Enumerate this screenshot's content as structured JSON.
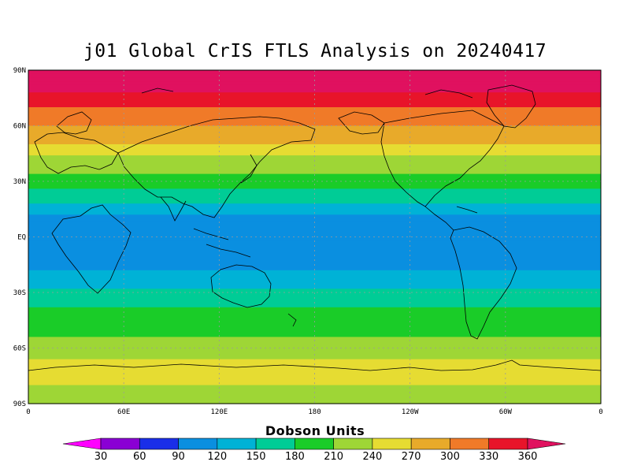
{
  "title": "j01 Global CrIS FTLS Analysis on 20240417",
  "map": {
    "lat_labels": [
      "90N",
      "60N",
      "30N",
      "EQ",
      "30S",
      "60S",
      "90S"
    ],
    "lon_labels": [
      "0",
      "60E",
      "120E",
      "180",
      "120W",
      "60W",
      "0"
    ],
    "grid": true,
    "projection": "equirectangular"
  },
  "colorbar": {
    "title": "Dobson Units",
    "labels": [
      "30",
      "60",
      "90",
      "120",
      "150",
      "180",
      "210",
      "240",
      "270",
      "300",
      "330",
      "360"
    ],
    "colors": [
      "#ff00ff",
      "#8a00d4",
      "#1a2ee8",
      "#0a8fe0",
      "#00b2d6",
      "#00cc96",
      "#1acc28",
      "#9ed636",
      "#e6dc32",
      "#e8aa2a",
      "#f07a28",
      "#e8142a",
      "#e0115f"
    ],
    "extend": "both"
  },
  "field": {
    "units": "Dobson Units",
    "zones": [
      {
        "lat": 90,
        "value": 370
      },
      {
        "lat": 80,
        "value": 365
      },
      {
        "lat": 72,
        "value": 335
      },
      {
        "lat": 62,
        "value": 305
      },
      {
        "lat": 52,
        "value": 275
      },
      {
        "lat": 42,
        "value": 235
      },
      {
        "lat": 35,
        "value": 215
      },
      {
        "lat": 28,
        "value": 190
      },
      {
        "lat": 20,
        "value": 155
      },
      {
        "lat": 10,
        "value": 115
      },
      {
        "lat": 0,
        "value": 95
      },
      {
        "lat": -10,
        "value": 100
      },
      {
        "lat": -20,
        "value": 125
      },
      {
        "lat": -30,
        "value": 160
      },
      {
        "lat": -40,
        "value": 185
      },
      {
        "lat": -50,
        "value": 200
      },
      {
        "lat": -60,
        "value": 220
      },
      {
        "lat": -70,
        "value": 250
      },
      {
        "lat": -80,
        "value": 240
      },
      {
        "lat": -90,
        "value": 235
      }
    ]
  }
}
